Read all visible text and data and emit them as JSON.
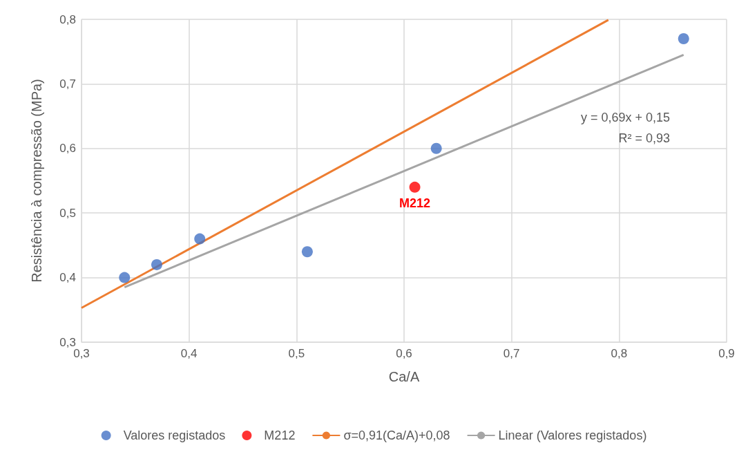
{
  "chart_data": {
    "type": "scatter",
    "xlabel": "Ca/A",
    "ylabel": "Resistência à compressão (MPa)",
    "xlim": [
      0.3,
      0.9
    ],
    "xticks": [
      {
        "value": 0.3,
        "label": "0,3"
      },
      {
        "value": 0.4,
        "label": "0,4"
      },
      {
        "value": 0.5,
        "label": "0,5"
      },
      {
        "value": 0.6,
        "label": "0,6"
      },
      {
        "value": 0.7,
        "label": "0,7"
      },
      {
        "value": 0.8,
        "label": "0,8"
      },
      {
        "value": 0.9,
        "label": "0,9"
      }
    ],
    "ylim": [
      0.3,
      0.8
    ],
    "yticks": [
      {
        "value": 0.3,
        "label": "0,3"
      },
      {
        "value": 0.4,
        "label": "0,4"
      },
      {
        "value": 0.5,
        "label": "0,5"
      },
      {
        "value": 0.6,
        "label": "0,6"
      },
      {
        "value": 0.7,
        "label": "0,7"
      },
      {
        "value": 0.8,
        "label": "0,8"
      }
    ],
    "grid": true,
    "legend": "bottom",
    "marker": "circle",
    "series": [
      {
        "name": "Valores registados",
        "color": "#4472c4",
        "x": [
          0.34,
          0.37,
          0.41,
          0.51,
          0.63,
          0.86
        ],
        "values": [
          0.4,
          0.42,
          0.46,
          0.44,
          0.6,
          0.77
        ]
      },
      {
        "name": "M212",
        "color": "#ff0000",
        "x": [
          0.61
        ],
        "values": [
          0.54
        ]
      },
      {
        "name": "σ=0,91(Ca/A)+0,08",
        "type": "line",
        "marker": "none",
        "color": "#ed7d31",
        "x": [
          0.3,
          0.79
        ],
        "values": [
          0.353,
          0.799
        ]
      },
      {
        "name": "Linear (Valores registados)",
        "type": "line",
        "marker": "none",
        "color": "#a5a5a5",
        "x": [
          0.34,
          0.86
        ],
        "values": [
          0.385,
          0.745
        ]
      }
    ],
    "annotations": [
      "y = 0,69x + 0,15",
      "R² = 0,93",
      {
        "text": "M212",
        "x": 0.61,
        "y": 0.54
      }
    ]
  }
}
